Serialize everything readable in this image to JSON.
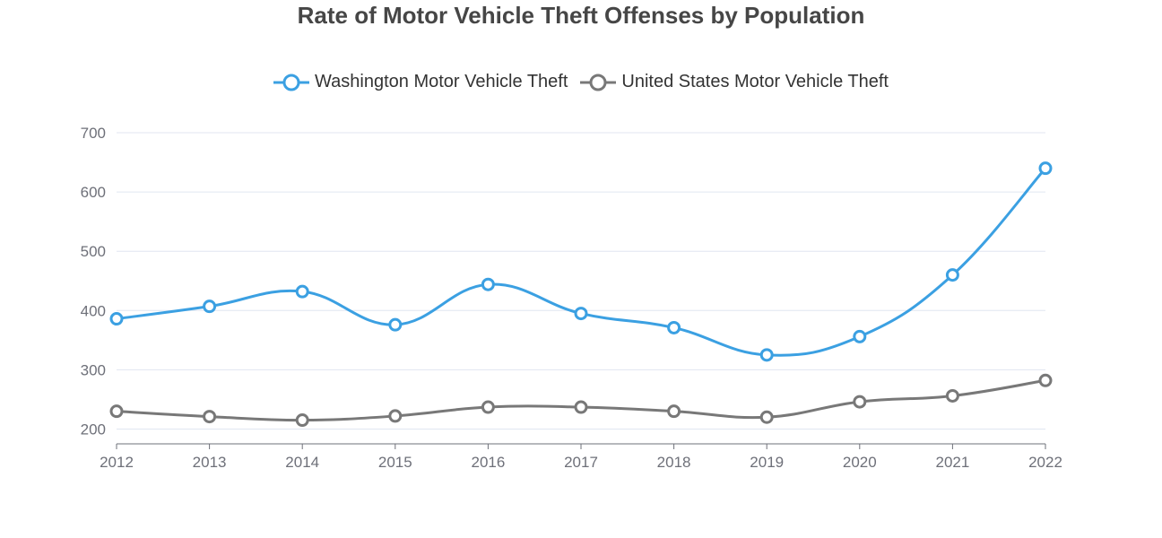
{
  "chart_data": {
    "type": "line",
    "title": "Rate of Motor Vehicle Theft Offenses by Population",
    "categories": [
      "2012",
      "2013",
      "2014",
      "2015",
      "2016",
      "2017",
      "2018",
      "2019",
      "2020",
      "2021",
      "2022"
    ],
    "series": [
      {
        "name": "Washington Motor Vehicle Theft",
        "color": "#3ba0e2",
        "values": [
          386,
          407,
          432,
          376,
          444,
          395,
          371,
          325,
          356,
          460,
          640
        ]
      },
      {
        "name": "United States Motor Vehicle Theft",
        "color": "#787878",
        "values": [
          230,
          221,
          215,
          222,
          237,
          237,
          230,
          220,
          246,
          256,
          282
        ]
      }
    ],
    "y_ticks": [
      "200",
      "300",
      "400",
      "500",
      "600",
      "700"
    ],
    "ylim": [
      175,
      700
    ],
    "xlabel": "",
    "ylabel": "",
    "grid": true,
    "legend_position": "top-center"
  }
}
